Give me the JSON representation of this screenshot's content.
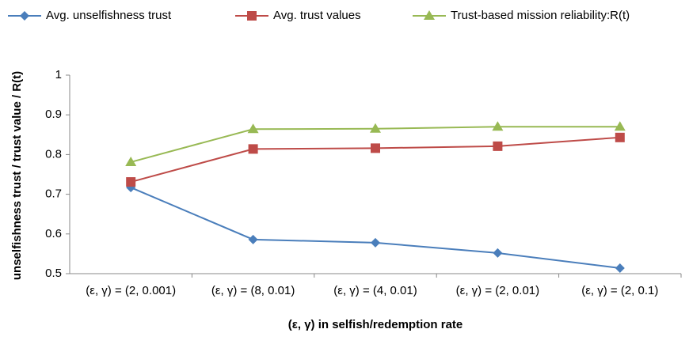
{
  "chart_data": {
    "type": "line",
    "y_label": "unselfishness trust / trust value / R(t)",
    "x_label": "(ε, γ)  in selfish/redemption rate",
    "categories": [
      "(ε, γ) = (2, 0.001)",
      "(ε, γ) = (8, 0.01)",
      "(ε, γ) = (4, 0.01)",
      "(ε, γ) = (2, 0.01)",
      "(ε, γ) = (2, 0.1)"
    ],
    "series": [
      {
        "name": "Avg. unselfishness trust",
        "color": "#4a7ebb",
        "marker": "diamond",
        "values": [
          0.717,
          0.586,
          0.578,
          0.552,
          0.514
        ]
      },
      {
        "name": "Avg. trust values",
        "color": "#be4b48",
        "marker": "square",
        "values": [
          0.731,
          0.814,
          0.816,
          0.821,
          0.843
        ]
      },
      {
        "name": "Trust-based mission reliability:R(t)",
        "color": "#98b954",
        "marker": "triangle",
        "values": [
          0.781,
          0.864,
          0.865,
          0.87,
          0.87
        ]
      }
    ],
    "ylim": [
      0.5,
      1
    ],
    "yticks": [
      0.5,
      0.6,
      0.7,
      0.8,
      0.9,
      1
    ],
    "grid": false,
    "legend": "top"
  }
}
